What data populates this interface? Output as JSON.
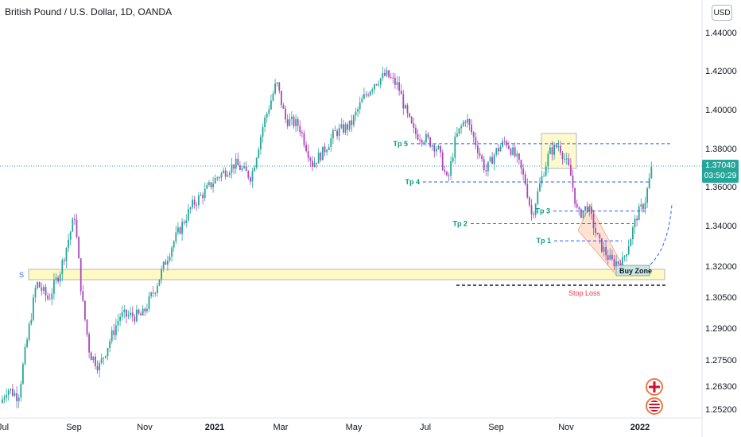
{
  "header": {
    "title": "British Pound / U.S. Dollar, 1D, OANDA",
    "currency": "USD"
  },
  "price_tag": {
    "price": "1.37040",
    "countdown": "03:50:29"
  },
  "colors": {
    "up": "#26a69a",
    "down": "#ab47bc",
    "target_line": "#2962ff",
    "zone_fill": "#fff9c4",
    "zone_border": "#b2b5be",
    "stop_line": "#131722",
    "stop_text": "#f23645",
    "green_text": "#089981"
  },
  "chart_data": {
    "type": "candlestick",
    "symbol": "GBPUSD",
    "y_ticks": [
      "1.44000",
      "1.42000",
      "1.40000",
      "1.38000",
      "1.36000",
      "1.34000",
      "1.32000",
      "1.30500",
      "1.29000",
      "1.27500",
      "1.26300",
      "1.25200"
    ],
    "x_ticks": [
      "Jul",
      "Sep",
      "Nov",
      "2021",
      "Mar",
      "May",
      "Jul",
      "Sep",
      "Nov",
      "2022"
    ],
    "last_price": 1.3704,
    "annotations": {
      "support_label": "S",
      "take_profits": [
        {
          "label": "Tp 5",
          "price": 1.3825
        },
        {
          "label": "Tp 4",
          "price": 1.3625
        },
        {
          "label": "Tp 3",
          "price": 1.3475
        },
        {
          "label": "Tp 2",
          "price": 1.341
        },
        {
          "label": "Tp 1",
          "price": 1.3325
        }
      ],
      "buy_zone_label": "Buy Zone",
      "stop_loss_label": "Stop Loss"
    }
  },
  "icons": [
    "gbp-flag-icon",
    "usd-flag-icon"
  ]
}
